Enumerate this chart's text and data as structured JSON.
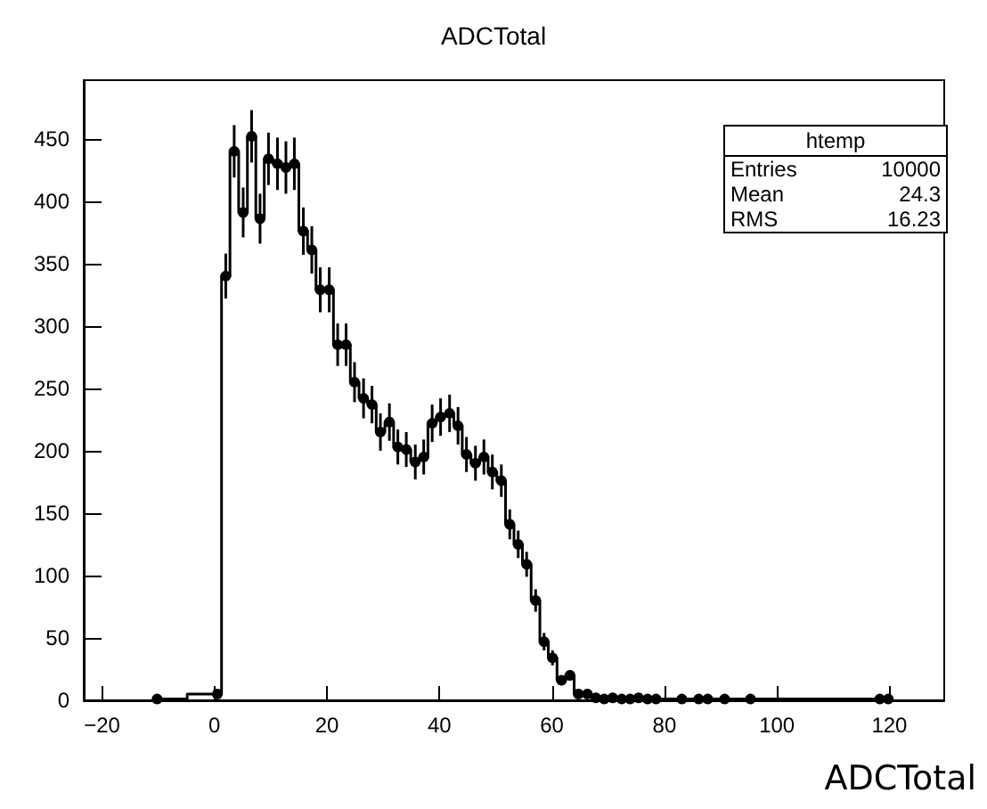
{
  "chart_data": {
    "type": "step",
    "title": "ADCTotal",
    "xlabel": "ADCTotal",
    "x": [
      -10.2,
      0.5,
      2.0,
      3.5,
      5.1,
      6.6,
      8.1,
      9.6,
      11.2,
      12.7,
      14.2,
      15.8,
      17.3,
      18.8,
      20.4,
      21.9,
      23.4,
      24.9,
      26.5,
      28.0,
      29.5,
      31.1,
      32.6,
      34.1,
      35.7,
      37.2,
      38.7,
      40.2,
      41.8,
      43.3,
      44.8,
      46.4,
      47.9,
      49.4,
      51.0,
      52.5,
      54.0,
      55.5,
      57.1,
      58.6,
      60.1,
      61.7,
      63.2,
      64.7,
      66.3,
      67.8,
      69.3,
      70.8,
      72.4,
      73.9,
      75.4,
      77.0,
      78.5,
      83.1,
      86.1,
      87.7,
      90.7,
      95.3,
      118.3,
      119.8
    ],
    "values": [
      1,
      5,
      340,
      440,
      391,
      452,
      386,
      434,
      430,
      427,
      430,
      376,
      361,
      329,
      329,
      285,
      285,
      255,
      242,
      237,
      215,
      223,
      203,
      201,
      191,
      195,
      222,
      227,
      230,
      220,
      197,
      190,
      195,
      183,
      176,
      141,
      125,
      109,
      80,
      47,
      34,
      16,
      20,
      5,
      5,
      2,
      1,
      2,
      1,
      1,
      2,
      1,
      1,
      1,
      1,
      1,
      1,
      1,
      1,
      1
    ],
    "errors": [
      null,
      null,
      18,
      21,
      20,
      21,
      20,
      21,
      21,
      21,
      21,
      19,
      19,
      18,
      18,
      17,
      17,
      16,
      16,
      15,
      15,
      15,
      14,
      14,
      14,
      14,
      15,
      15,
      15,
      15,
      14,
      14,
      14,
      14,
      13,
      12,
      11,
      10,
      9,
      7,
      6,
      4,
      4,
      null,
      null,
      null,
      null,
      null,
      null,
      null,
      null,
      null,
      null,
      null,
      null,
      null,
      null,
      null,
      null,
      null
    ],
    "xlim": [
      -23.25,
      129.75
    ],
    "xticks": [
      -20,
      0,
      20,
      40,
      60,
      80,
      100,
      120
    ],
    "ylim": [
      0,
      497
    ],
    "yticks": [
      0,
      50,
      100,
      150,
      200,
      250,
      300,
      350,
      400,
      450
    ],
    "color": "#000000",
    "marker": "circle",
    "grid": false,
    "annotations": [
      "htemp",
      "Entries 10000",
      "Mean 24.3",
      "RMS 16.23"
    ]
  }
}
